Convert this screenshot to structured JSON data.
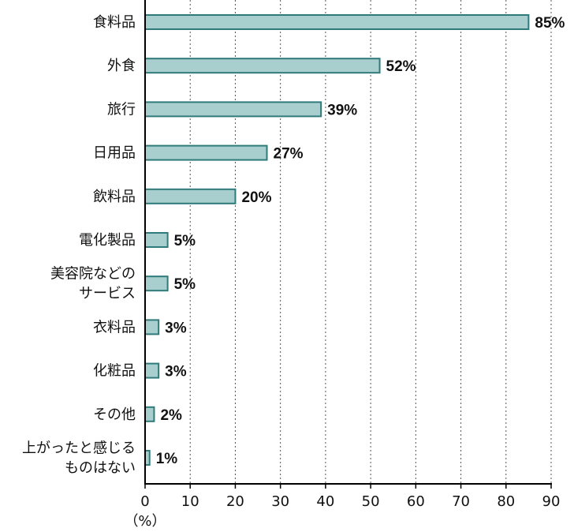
{
  "chart_data": {
    "type": "bar",
    "orientation": "horizontal",
    "categories": [
      [
        "食料品"
      ],
      [
        "外食"
      ],
      [
        "旅行"
      ],
      [
        "日用品"
      ],
      [
        "飲料品"
      ],
      [
        "電化製品"
      ],
      [
        "美容院などの",
        "サービス"
      ],
      [
        "衣料品"
      ],
      [
        "化粧品"
      ],
      [
        "その他"
      ],
      [
        "上がったと感じる",
        "ものはない"
      ]
    ],
    "values": [
      85,
      52,
      39,
      27,
      20,
      5,
      5,
      3,
      3,
      2,
      1
    ],
    "value_labels": [
      "85%",
      "52%",
      "39%",
      "27%",
      "20%",
      "5%",
      "5%",
      "3%",
      "3%",
      "2%",
      "1%"
    ],
    "xlim": [
      0,
      90
    ],
    "xticks": [
      0,
      10,
      20,
      30,
      40,
      50,
      60,
      70,
      80,
      90
    ],
    "xunit": "（%）",
    "grid": "vertical-dotted",
    "colors": {
      "bar_fill": "#a8cfcd",
      "bar_stroke": "#2f7a7a",
      "axis": "#000000",
      "grid": "#555555"
    }
  }
}
